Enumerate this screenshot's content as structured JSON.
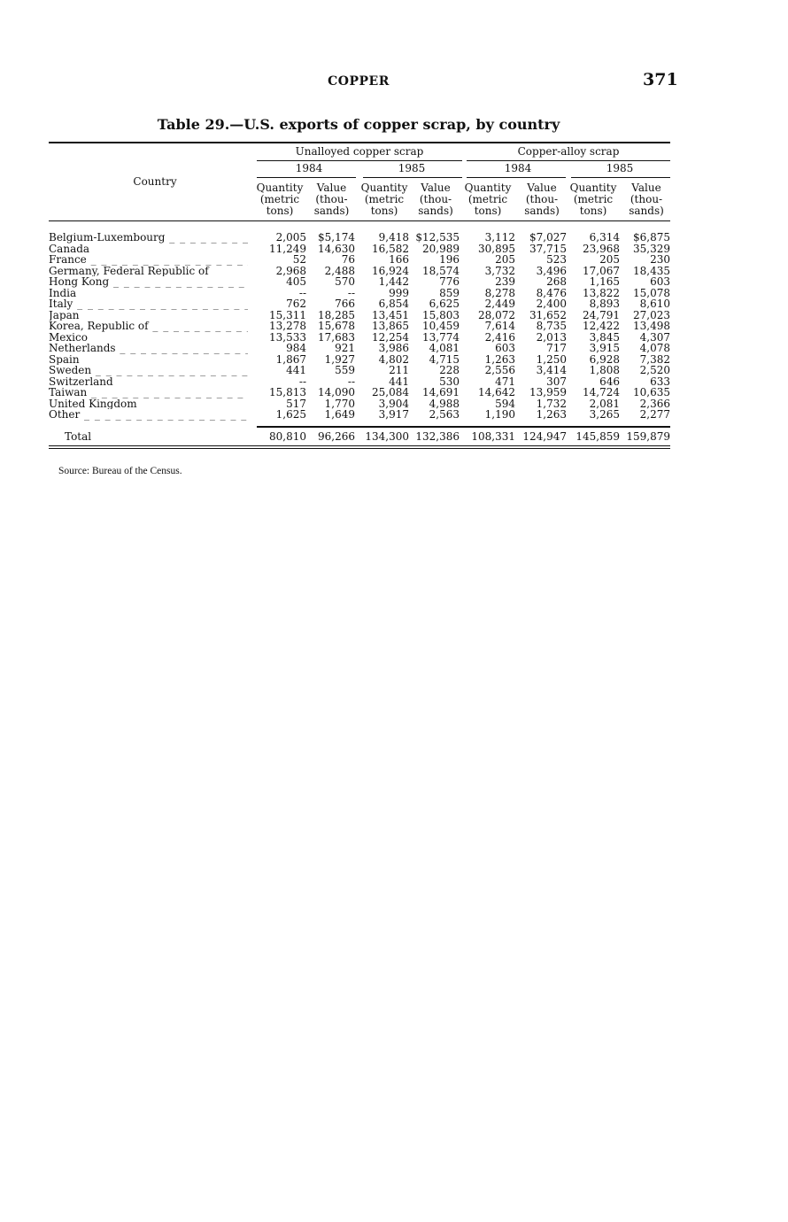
{
  "running_head": "COPPER",
  "page_number": "371",
  "table": {
    "title": "Table 29.—U.S. exports of copper scrap, by country",
    "country_header": "Country",
    "groups": [
      "Unalloyed copper scrap",
      "Copper-alloy scrap"
    ],
    "years": [
      "1984",
      "1985",
      "1984",
      "1985"
    ],
    "col_headers": [
      [
        "Quantity",
        "(metric",
        "tons)"
      ],
      [
        "Value",
        "(thou-",
        "sands)"
      ],
      [
        "Quantity",
        "(metric",
        "tons)"
      ],
      [
        "Value",
        "(thou-",
        "sands)"
      ],
      [
        "Quantity",
        "(metric",
        "tons)"
      ],
      [
        "Value",
        "(thou-",
        "sands)"
      ],
      [
        "Quantity",
        "(metric",
        "tons)"
      ],
      [
        "Value",
        "(thou-",
        "sands)"
      ]
    ],
    "rows": [
      {
        "country": "Belgium-Luxembourg",
        "values": [
          "2,005",
          "$5,174",
          "9,418",
          "$12,535",
          "3,112",
          "$7,027",
          "6,314",
          "$6,875"
        ]
      },
      {
        "country": "Canada",
        "values": [
          "11,249",
          "14,630",
          "16,582",
          "20,989",
          "30,895",
          "37,715",
          "23,968",
          "35,329"
        ]
      },
      {
        "country": "France",
        "values": [
          "52",
          "76",
          "166",
          "196",
          "205",
          "523",
          "205",
          "230"
        ]
      },
      {
        "country": "Germany, Federal Republic of",
        "values": [
          "2,968",
          "2,488",
          "16,924",
          "18,574",
          "3,732",
          "3,496",
          "17,067",
          "18,435"
        ]
      },
      {
        "country": "Hong Kong",
        "values": [
          "405",
          "570",
          "1,442",
          "776",
          "239",
          "268",
          "1,165",
          "603"
        ]
      },
      {
        "country": "India",
        "values": [
          "--",
          "--",
          "999",
          "859",
          "8,278",
          "8,476",
          "13,822",
          "15,078"
        ]
      },
      {
        "country": "Italy",
        "values": [
          "762",
          "766",
          "6,854",
          "6,625",
          "2,449",
          "2,400",
          "8,893",
          "8,610"
        ]
      },
      {
        "country": "Japan",
        "values": [
          "15,311",
          "18,285",
          "13,451",
          "15,803",
          "28,072",
          "31,652",
          "24,791",
          "27,023"
        ]
      },
      {
        "country": "Korea, Republic of",
        "values": [
          "13,278",
          "15,678",
          "13,865",
          "10,459",
          "7,614",
          "8,735",
          "12,422",
          "13,498"
        ]
      },
      {
        "country": "Mexico",
        "values": [
          "13,533",
          "17,683",
          "12,254",
          "13,774",
          "2,416",
          "2,013",
          "3,845",
          "4,307"
        ]
      },
      {
        "country": "Netherlands",
        "values": [
          "984",
          "921",
          "3,986",
          "4,081",
          "603",
          "717",
          "3,915",
          "4,078"
        ]
      },
      {
        "country": "Spain",
        "values": [
          "1,867",
          "1,927",
          "4,802",
          "4,715",
          "1,263",
          "1,250",
          "6,928",
          "7,382"
        ]
      },
      {
        "country": "Sweden",
        "values": [
          "441",
          "559",
          "211",
          "228",
          "2,556",
          "3,414",
          "1,808",
          "2,520"
        ]
      },
      {
        "country": "Switzerland",
        "values": [
          "--",
          "--",
          "441",
          "530",
          "471",
          "307",
          "646",
          "633"
        ]
      },
      {
        "country": "Taiwan",
        "values": [
          "15,813",
          "14,090",
          "25,084",
          "14,691",
          "14,642",
          "13,959",
          "14,724",
          "10,635"
        ]
      },
      {
        "country": "United Kingdom",
        "values": [
          "517",
          "1,770",
          "3,904",
          "4,988",
          "594",
          "1,732",
          "2,081",
          "2,366"
        ]
      },
      {
        "country": "Other",
        "values": [
          "1,625",
          "1,649",
          "3,917",
          "2,563",
          "1,190",
          "1,263",
          "3,265",
          "2,277"
        ]
      }
    ],
    "total": {
      "country": "Total",
      "values": [
        "80,810",
        "96,266",
        "134,300",
        "132,386",
        "108,331",
        "124,947",
        "145,859",
        "159,879"
      ]
    }
  },
  "source": "Source: Bureau of the Census."
}
